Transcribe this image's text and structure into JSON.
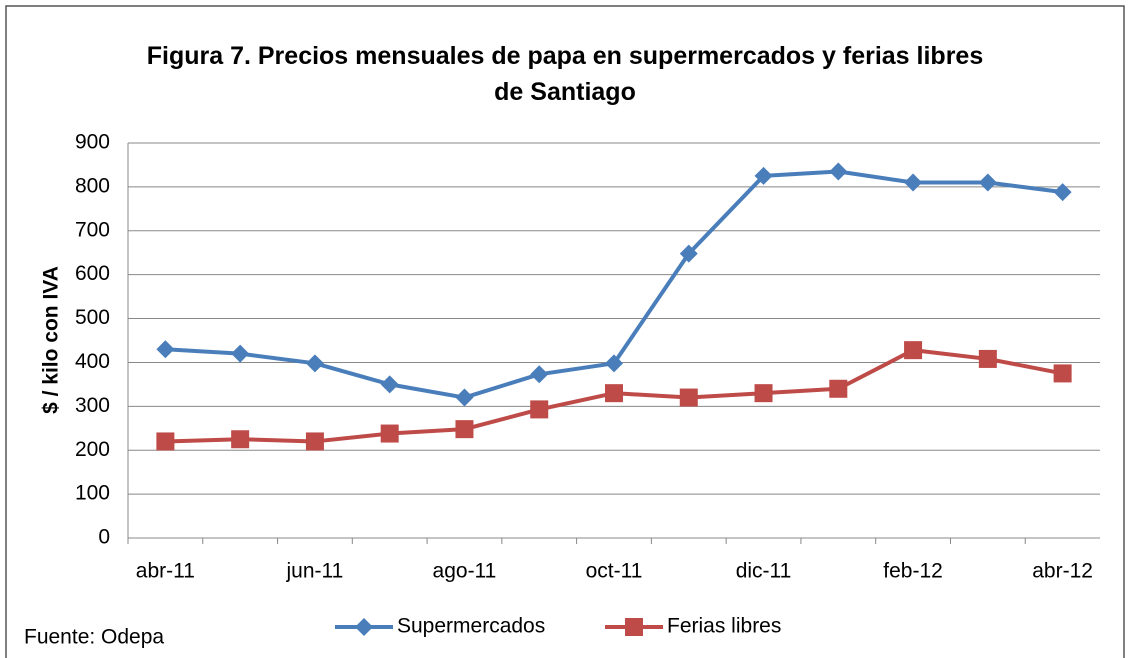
{
  "chart_data": {
    "type": "line",
    "title": "Figura 7. Precios mensuales de papa en supermercados y ferias libres de Santiago",
    "y_label": "$ / kilo con IVA",
    "source": "Fuente: Odepa",
    "categories": [
      "abr-11",
      null,
      "jun-11",
      null,
      "ago-11",
      null,
      "oct-11",
      null,
      "dic-11",
      null,
      "feb-12",
      null,
      "abr-12"
    ],
    "series": [
      {
        "name": "Supermercados",
        "color": "#4a7ebb",
        "marker": "diamond",
        "values": [
          430,
          420,
          398,
          350,
          320,
          373,
          398,
          648,
          825,
          835,
          810,
          810,
          788
        ]
      },
      {
        "name": "Ferias libres",
        "color": "#be4b48",
        "marker": "square",
        "values": [
          220,
          225,
          220,
          238,
          248,
          293,
          330,
          320,
          330,
          340,
          428,
          408,
          375
        ]
      }
    ],
    "ylim": [
      0,
      900
    ],
    "yticks": [
      0,
      100,
      200,
      300,
      400,
      500,
      600,
      700,
      800,
      900
    ],
    "grid": true,
    "legend": "bottom"
  }
}
